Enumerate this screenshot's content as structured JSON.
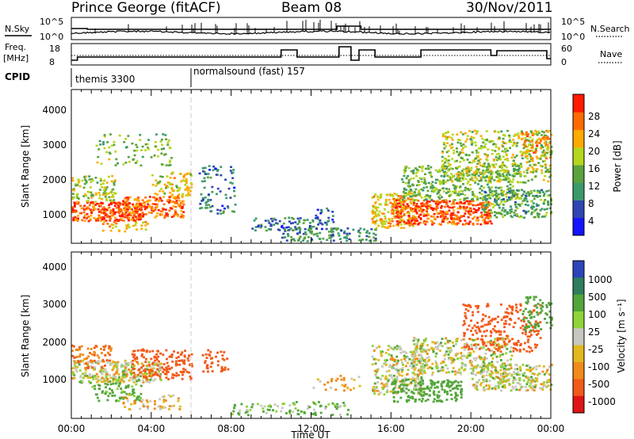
{
  "header": {
    "station": "Prince George (fitACF)",
    "beam": "Beam 08",
    "date": "30/Nov/2011"
  },
  "top_panels": {
    "nsky_label": "N.Sky",
    "nsky_ticks_left": [
      "10^5",
      "10^0"
    ],
    "nsearch_ticks_right": [
      "10^5",
      "10^0"
    ],
    "nsearch_label": "N.Search",
    "freq_label": "Freq.",
    "freq_unit": "[MHz]",
    "freq_ticks": [
      "18",
      "8"
    ],
    "nave_ticks": [
      "60",
      "0"
    ],
    "nave_label": "Nave",
    "cpid_label": "CPID",
    "cpid_segments": [
      {
        "label": "themis 3300",
        "start_hour": 0,
        "end_hour": 6
      },
      {
        "label": "normalsound (fast) 157",
        "start_hour": 6,
        "end_hour": 24
      }
    ]
  },
  "colors": {
    "power_scale": [
      "#1414ff",
      "#2f46b4",
      "#3c9a6a",
      "#5aa33c",
      "#b5d61f",
      "#ffaa00",
      "#ff6a00",
      "#ff1a00"
    ],
    "velocity_scale": [
      "#2c46b8",
      "#2e7d5c",
      "#53a63a",
      "#8fd43a",
      "#c8c8c0",
      "#e3b81f",
      "#f08a1a",
      "#f25a1a",
      "#e01414"
    ],
    "accent": "#000000"
  },
  "chart_data": [
    {
      "type": "heatmap",
      "panel": "power",
      "xlabel": "",
      "ylabel": "Slant Range [km]",
      "xlim": [
        0,
        24
      ],
      "ylim": [
        180,
        4600
      ],
      "y_ticks": [
        "1000",
        "2000",
        "3000",
        "4000"
      ],
      "colorbar_label": "Power [dB]",
      "colorbar_ticks": [
        "4",
        "8",
        "12",
        "16",
        "20",
        "24",
        "28"
      ],
      "colorbar_range": [
        0,
        30
      ],
      "blobs": [
        {
          "t": [
            0.0,
            3.6
          ],
          "r": [
            800,
            1350
          ],
          "v": 26,
          "density": 0.85
        },
        {
          "t": [
            0.0,
            2.2
          ],
          "r": [
            1350,
            2100
          ],
          "v": 16,
          "density": 0.45
        },
        {
          "t": [
            1.5,
            3.8
          ],
          "r": [
            500,
            800
          ],
          "v": 20,
          "density": 0.35
        },
        {
          "t": [
            2.5,
            5.6
          ],
          "r": [
            900,
            1500
          ],
          "v": 24,
          "density": 0.7
        },
        {
          "t": [
            4.0,
            6.0
          ],
          "r": [
            1500,
            2200
          ],
          "v": 18,
          "density": 0.4
        },
        {
          "t": [
            1.2,
            5.0
          ],
          "r": [
            2400,
            3300
          ],
          "v": 14,
          "density": 0.18
        },
        {
          "t": [
            6.3,
            8.2
          ],
          "r": [
            1000,
            2400
          ],
          "v": 8,
          "density": 0.22
        },
        {
          "t": [
            9.0,
            12.5
          ],
          "r": [
            500,
            900
          ],
          "v": 8,
          "density": 0.35
        },
        {
          "t": [
            10.5,
            15.2
          ],
          "r": [
            220,
            600
          ],
          "v": 10,
          "density": 0.45
        },
        {
          "t": [
            12.0,
            13.2
          ],
          "r": [
            700,
            1200
          ],
          "v": 6,
          "density": 0.25
        },
        {
          "t": [
            15.0,
            17.2
          ],
          "r": [
            600,
            1600
          ],
          "v": 20,
          "density": 0.6
        },
        {
          "t": [
            16.0,
            21.0
          ],
          "r": [
            700,
            1400
          ],
          "v": 26,
          "density": 0.8
        },
        {
          "t": [
            16.5,
            22.5
          ],
          "r": [
            1400,
            2400
          ],
          "v": 14,
          "density": 0.5
        },
        {
          "t": [
            18.5,
            24.0
          ],
          "r": [
            1900,
            3400
          ],
          "v": 16,
          "density": 0.4
        },
        {
          "t": [
            20.5,
            24.0
          ],
          "r": [
            900,
            1700
          ],
          "v": 12,
          "density": 0.55
        },
        {
          "t": [
            22.5,
            24.0
          ],
          "r": [
            2600,
            3400
          ],
          "v": 22,
          "density": 0.4
        }
      ]
    },
    {
      "type": "heatmap",
      "panel": "velocity",
      "xlabel": "Time UT",
      "ylabel": "Slant Range [km]",
      "xlim": [
        0,
        24
      ],
      "ylim": [
        180,
        4600
      ],
      "x_ticks": [
        "00:00",
        "04:00",
        "08:00",
        "12:00",
        "16:00",
        "20:00",
        "00:00"
      ],
      "y_ticks": [
        "1000",
        "2000",
        "3000",
        "4000"
      ],
      "colorbar_label": "Velocity [m s⁻¹]",
      "colorbar_ticks": [
        "1000",
        "500",
        "100",
        "25",
        "-25",
        "-100",
        "-500",
        "-1000"
      ],
      "blobs": [
        {
          "t": [
            0.0,
            4.5
          ],
          "r": [
            1100,
            1700
          ],
          "v": 0,
          "density": 0.75
        },
        {
          "t": [
            0.0,
            2.0
          ],
          "r": [
            1500,
            2100
          ],
          "v": -300,
          "density": 0.4
        },
        {
          "t": [
            3.0,
            6.0
          ],
          "r": [
            1200,
            2000
          ],
          "v": -500,
          "density": 0.45
        },
        {
          "t": [
            1.0,
            3.5
          ],
          "r": [
            600,
            1100
          ],
          "v": 120,
          "density": 0.4
        },
        {
          "t": [
            2.5,
            5.5
          ],
          "r": [
            400,
            800
          ],
          "v": -50,
          "density": 0.3
        },
        {
          "t": [
            6.5,
            7.8
          ],
          "r": [
            1400,
            2000
          ],
          "v": -400,
          "density": 0.35
        },
        {
          "t": [
            8.0,
            14.0
          ],
          "r": [
            250,
            600
          ],
          "v": 60,
          "density": 0.3
        },
        {
          "t": [
            12.0,
            14.5
          ],
          "r": [
            900,
            1300
          ],
          "v": -60,
          "density": 0.2
        },
        {
          "t": [
            15.0,
            17.5
          ],
          "r": [
            800,
            2100
          ],
          "v": 0,
          "density": 0.55
        },
        {
          "t": [
            16.0,
            19.5
          ],
          "r": [
            600,
            1200
          ],
          "v": 200,
          "density": 0.55
        },
        {
          "t": [
            17.0,
            22.0
          ],
          "r": [
            1300,
            2300
          ],
          "v": 0,
          "density": 0.5
        },
        {
          "t": [
            19.5,
            23.5
          ],
          "r": [
            1900,
            3200
          ],
          "v": -400,
          "density": 0.3
        },
        {
          "t": [
            20.0,
            24.0
          ],
          "r": [
            900,
            1600
          ],
          "v": 0,
          "density": 0.6
        },
        {
          "t": [
            22.5,
            24.0
          ],
          "r": [
            2500,
            3400
          ],
          "v": 150,
          "density": 0.35
        }
      ]
    }
  ]
}
